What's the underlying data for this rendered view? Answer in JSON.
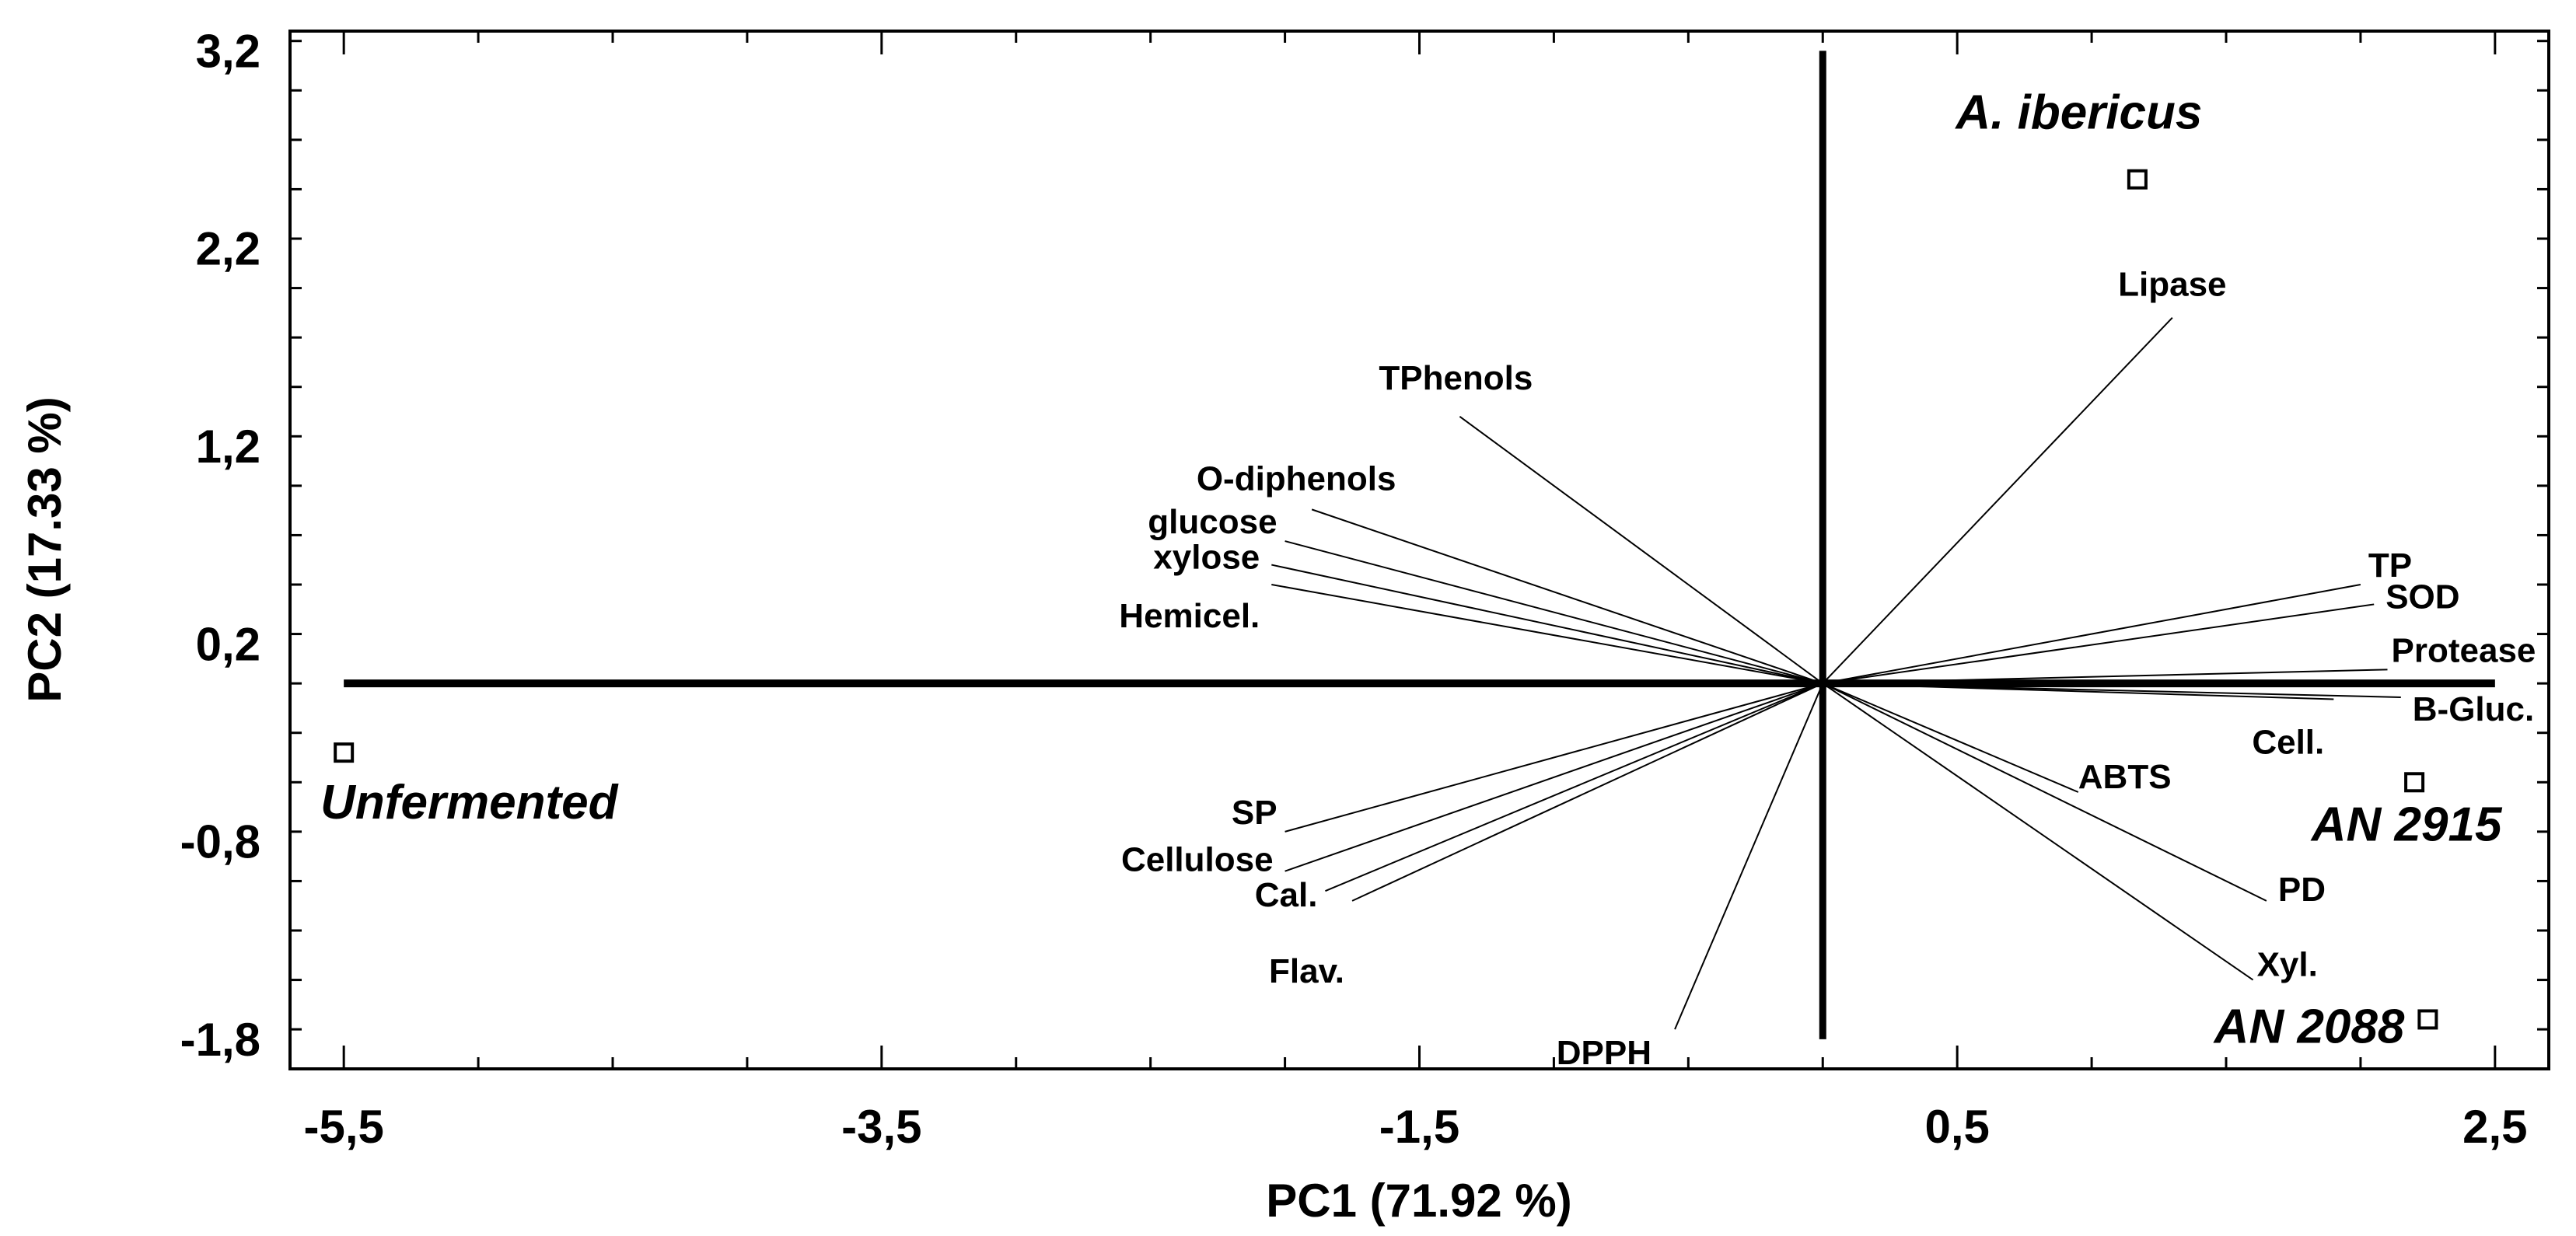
{
  "chart_data": {
    "type": "scatter",
    "subtype": "pca-biplot",
    "xlabel": "PC1 (71.92 %)",
    "ylabel": "PC2 (17.33 %)",
    "xlim": [
      -5.7,
      2.7
    ],
    "ylim": [
      -1.95,
      3.3
    ],
    "x_ticks": [
      -5.5,
      -3.5,
      -1.5,
      0.5,
      2.5
    ],
    "x_tick_labels": [
      "-5,5",
      "-3,5",
      "-1,5",
      "0,5",
      "2,5"
    ],
    "y_ticks": [
      -1.8,
      -0.8,
      0.2,
      1.2,
      2.2,
      3.2
    ],
    "y_tick_labels": [
      "-1,8",
      "-0,8",
      "0,2",
      "1,2",
      "2,2",
      "3,2"
    ],
    "grid": false,
    "axis_lines": {
      "horizontal_y": 0,
      "vertical_x": 0,
      "x_range": [
        -5.5,
        2.5
      ],
      "y_range": [
        -1.8,
        3.2
      ]
    },
    "samples": [
      {
        "name": "Unfermented",
        "x": -5.5,
        "y": -0.35
      },
      {
        "name": "A. ibericus",
        "x": 1.17,
        "y": 2.55
      },
      {
        "name": "AN 2915",
        "x": 2.2,
        "y": -0.5
      },
      {
        "name": "AN 2088",
        "x": 2.25,
        "y": -1.7
      }
    ],
    "loadings": [
      {
        "name": "Lipase",
        "x": 1.3,
        "y": 1.85
      },
      {
        "name": "TPhenols",
        "x": -1.35,
        "y": 1.35
      },
      {
        "name": "O-diphenols",
        "x": -1.9,
        "y": 0.88
      },
      {
        "name": "glucose",
        "x": -2.0,
        "y": 0.72
      },
      {
        "name": "xylose",
        "x": -2.05,
        "y": 0.6
      },
      {
        "name": "Hemicel.",
        "x": -2.05,
        "y": 0.5
      },
      {
        "name": "TP",
        "x": 2.0,
        "y": 0.5
      },
      {
        "name": "SOD",
        "x": 2.05,
        "y": 0.4
      },
      {
        "name": "Protease",
        "x": 2.1,
        "y": 0.07
      },
      {
        "name": "B-Gluc.",
        "x": 2.15,
        "y": -0.07
      },
      {
        "name": "Cell.",
        "x": 1.9,
        "y": -0.08
      },
      {
        "name": "ABTS",
        "x": 0.95,
        "y": -0.55
      },
      {
        "name": "PD",
        "x": 1.65,
        "y": -1.1
      },
      {
        "name": "Xyl.",
        "x": 1.6,
        "y": -1.5
      },
      {
        "name": "SP",
        "x": -2.0,
        "y": -0.75
      },
      {
        "name": "Cellulose",
        "x": -2.0,
        "y": -0.95
      },
      {
        "name": "Cal.",
        "x": -1.85,
        "y": -1.05
      },
      {
        "name": "Flav.",
        "x": -1.75,
        "y": -1.1
      },
      {
        "name": "DPPH",
        "x": -0.55,
        "y": -1.75
      }
    ]
  }
}
